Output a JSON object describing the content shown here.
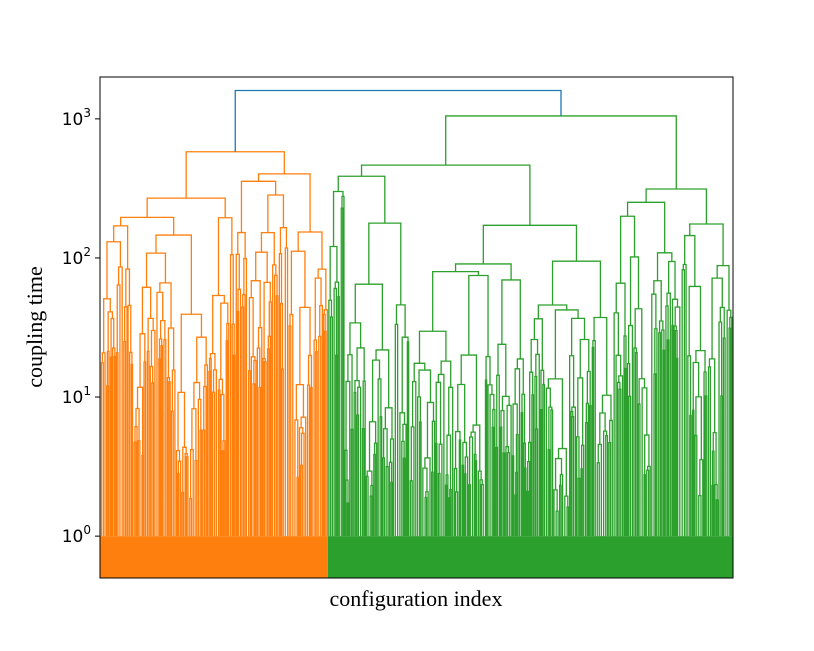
{
  "chart_data": {
    "type": "dendrogram",
    "xlabel": "configuration index",
    "ylabel": "coupling time",
    "yscale": "log",
    "ylim": [
      0.5,
      2000
    ],
    "yticks": [
      {
        "value": 1,
        "base": "10",
        "exp": "0"
      },
      {
        "value": 10,
        "base": "10",
        "exp": "1"
      },
      {
        "value": 100,
        "base": "10",
        "exp": "2"
      },
      {
        "value": 1000,
        "base": "10",
        "exp": "3"
      }
    ],
    "x_ticks_shown": false,
    "grid": false,
    "root": {
      "height": 1600,
      "color": "#1f77b4"
    },
    "clusters": [
      {
        "color": "#ff7f0e",
        "leaf_span_fraction": 0.36,
        "merge_height": 580,
        "subcluster_top_heights": [
          320,
          300,
          280,
          260,
          240,
          220,
          200,
          185,
          170,
          160,
          150,
          140,
          130,
          120,
          110,
          100,
          95,
          85,
          75,
          60,
          50,
          30,
          20,
          14,
          9,
          7,
          5,
          4,
          3,
          2
        ]
      },
      {
        "color": "#2ca02c",
        "leaf_span_fraction": 0.64,
        "merge_height": 1050,
        "subcluster_top_heights": [
          1000,
          600,
          580,
          560,
          380,
          360,
          350,
          340,
          320,
          300,
          280,
          270,
          260,
          250,
          240,
          230,
          220,
          210,
          200,
          190,
          180,
          170,
          160,
          150,
          130,
          110,
          90,
          70,
          50,
          30,
          20,
          12,
          8,
          5,
          4,
          3,
          2
        ]
      }
    ],
    "leaf_height": 1
  }
}
